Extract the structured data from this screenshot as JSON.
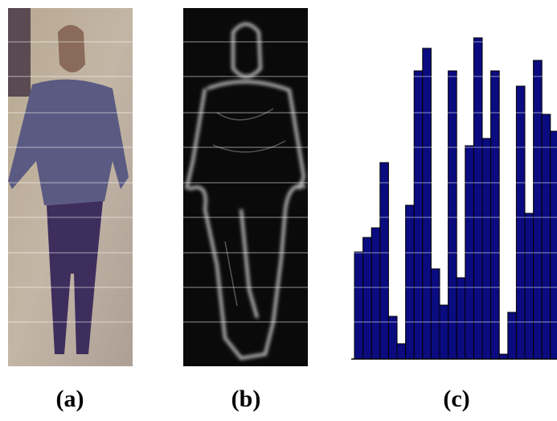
{
  "panels": [
    {
      "label": "(a)"
    },
    {
      "label": "(b)"
    },
    {
      "label": "(c)"
    }
  ],
  "chart_data": {
    "type": "bar",
    "values": [
      133,
      151,
      163,
      244,
      53,
      19,
      191,
      358,
      386,
      112,
      67,
      358,
      101,
      265,
      399,
      274,
      358,
      6,
      58,
      339,
      181,
      371,
      304,
      283
    ],
    "ylim": [
      0,
      400
    ],
    "color": "#0b0b80"
  }
}
